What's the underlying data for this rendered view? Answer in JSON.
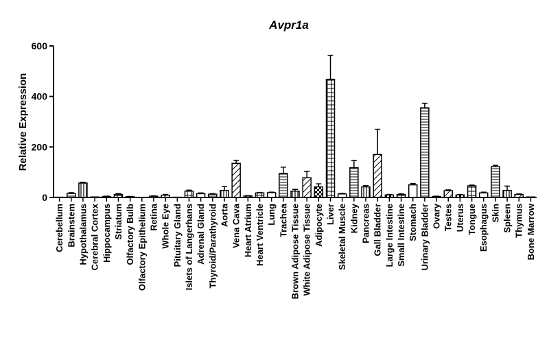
{
  "chart_data": {
    "type": "bar",
    "title": "Avpr1a",
    "ylabel": "Relative Expression",
    "xlabel": "",
    "ylim": [
      0,
      600
    ],
    "yticks": [
      0,
      200,
      400,
      600
    ],
    "grid": false,
    "categories": [
      "Cerebellum",
      "Brainstem",
      "Hypothalamus",
      "Cerebral Cortex",
      "Hippocampus",
      "Striatum",
      "Olfactory Bulb",
      "Olfactory Epithelium",
      "Retina",
      "Whole Eye",
      "Pituitary Gland",
      "Islets of Langerhans",
      "Adrenal Gland",
      "Thyroid/Parathyroid",
      "Aorta",
      "Vena Cava",
      "Heart Atrium",
      "Heart Ventricle",
      "Lung",
      "Trachea",
      "Brown Adipose Tissue",
      "White Adipose Tissue",
      "Adipocyte",
      "Liver",
      "Skeletal Muscle",
      "Kidney",
      "Pancreas",
      "Gall Bladder",
      "Large Intestine",
      "Small Intestine",
      "Stomach",
      "Urinary Bladder",
      "Ovary",
      "Testes",
      "Uterus",
      "Tongue",
      "Esophagus",
      "Skin",
      "Spleen",
      "Thymus",
      "Bone Marrow"
    ],
    "values": [
      1,
      16,
      57,
      2,
      4,
      12,
      3,
      0,
      5,
      9,
      1,
      25,
      15,
      13,
      28,
      135,
      6,
      18,
      19,
      95,
      25,
      78,
      42,
      468,
      14,
      118,
      42,
      170,
      10,
      12,
      50,
      355,
      4,
      27,
      10,
      46,
      18,
      122,
      28,
      12,
      2
    ],
    "errors": [
      0,
      3,
      3,
      0,
      1,
      3,
      1,
      0,
      1,
      3,
      0,
      4,
      3,
      2,
      15,
      12,
      1,
      2,
      2,
      25,
      7,
      25,
      12,
      95,
      2,
      28,
      5,
      100,
      2,
      2,
      5,
      18,
      1,
      3,
      2,
      3,
      3,
      5,
      17,
      2,
      0
    ]
  }
}
